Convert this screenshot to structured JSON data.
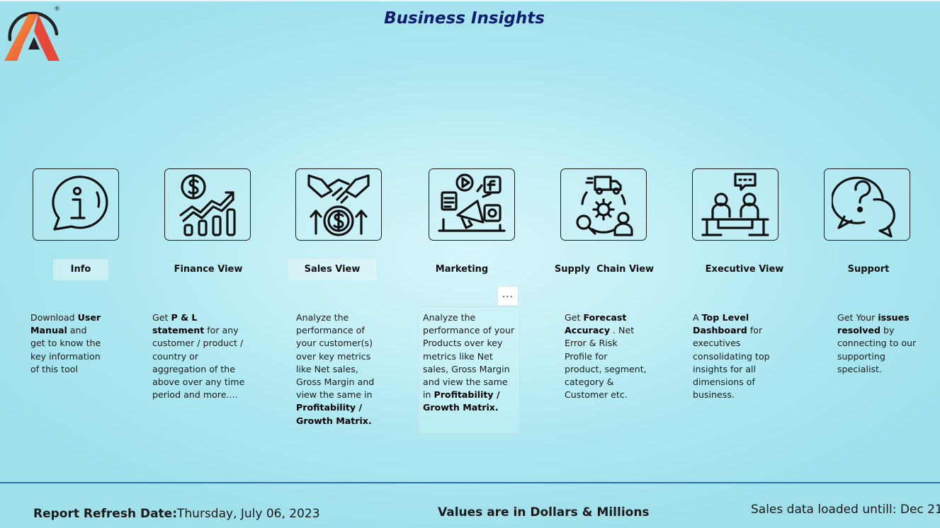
{
  "header": {
    "title": "Business Insights",
    "logo_mark": "®"
  },
  "tiles": [
    {
      "label": "Info",
      "icon": "info-chat-icon"
    },
    {
      "label": "Finance View",
      "icon": "finance-growth-icon"
    },
    {
      "label": "Sales View",
      "icon": "handshake-dollar-icon"
    },
    {
      "label": "Marketing",
      "icon": "marketing-megaphone-icon"
    },
    {
      "label": "Supply  Chain View",
      "icon": "supply-chain-icon"
    },
    {
      "label": "Executive View",
      "icon": "executive-meeting-icon"
    },
    {
      "label": "Support",
      "icon": "support-question-icon"
    }
  ],
  "descriptions": {
    "info": {
      "p1": "Download ",
      "b1": "User Manual",
      "p2": " and get to know the key information of this tool"
    },
    "finance": {
      "p1": "Get ",
      "b1": "P & L statement",
      "p2": " for any customer / product / country or aggregation of the above over any time period and more...."
    },
    "sales": {
      "p1": "Analyze the performance of your customer(s) over key metrics like Net sales, Gross Margin and view the same in ",
      "b1": "Profitability / Growth Matrix."
    },
    "marketing": {
      "p1": "Analyze the performance of your Products  over key metrics like Net sales, Gross Margin and view the same in ",
      "b1": "Profitability / Growth Matrix."
    },
    "supply": {
      "p1": "Get ",
      "b1": "Forecast Accuracy",
      "p2": " . Net Error & Risk Profile for product, segment, category & Customer etc."
    },
    "executive": {
      "p1": "A ",
      "b1": "Top Level Dashboard",
      "p2": " for executives consolidating top insights for all dimensions of business."
    },
    "support": {
      "p1": "Get Your ",
      "b1": "issues resolved",
      "p2": " by connecting to our supporting specialist."
    }
  },
  "more_options": "⋯",
  "footer": {
    "refresh_label": "Report Refresh Date:",
    "refresh_value": "Thursday, July 06, 2023",
    "values_note": "Values are in Dollars & Millions",
    "sales_loaded": "Sales data loaded untill: Dec 21"
  },
  "colors": {
    "title": "#101c6e",
    "divider": "#2a6fc4",
    "logo_orange": "#f26a2e",
    "logo_red": "#e8483a"
  }
}
